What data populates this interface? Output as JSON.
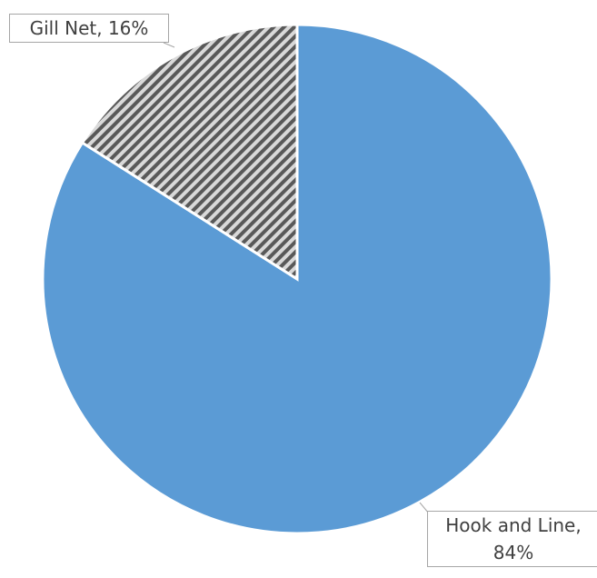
{
  "chart_data": {
    "type": "pie",
    "categories": [
      "Hook and Line",
      "Gill Net"
    ],
    "values": [
      84,
      16
    ],
    "value_labels": [
      "Hook and Line, 84%",
      "Gill Net, 16%"
    ],
    "colors": [
      "#5b9bd5",
      "#7f7f7f"
    ]
  }
}
